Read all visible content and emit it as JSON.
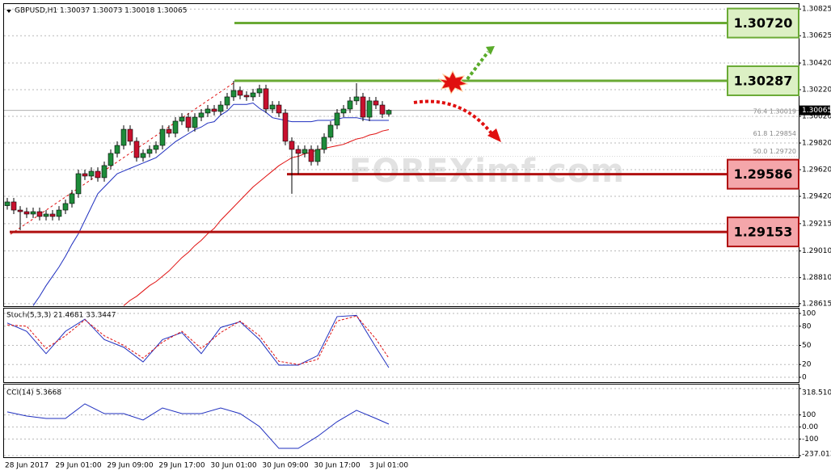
{
  "chart_data": [
    {
      "type": "candlestick",
      "title": "GBPUSD,H1 1.30037 1.30073 1.30018 1.30065",
      "categories": [
        "28 Jun 2017",
        null,
        null,
        null,
        null,
        null,
        null,
        null,
        null,
        null,
        null,
        "29 Jun 01:00",
        null,
        null,
        null,
        null,
        null,
        null,
        null,
        "29 Jun 09:00",
        null,
        null,
        null,
        null,
        null,
        null,
        null,
        "29 Jun 17:00",
        null,
        null,
        null,
        null,
        null,
        null,
        null,
        "30 Jun 01:00",
        null,
        null,
        null,
        null,
        null,
        null,
        null,
        "30 Jun 09:00",
        null,
        null,
        null,
        null,
        null,
        null,
        null,
        "30 Jun 17:00",
        null,
        null,
        null,
        null,
        null,
        null,
        null,
        "3 Jul 01:00"
      ],
      "open": [
        1.2935,
        1.29378,
        1.29317,
        1.29305,
        1.29287,
        1.29305,
        1.29269,
        1.29287,
        1.29269,
        1.29317,
        1.29366,
        1.29439,
        1.2959,
        1.29572,
        1.29608,
        1.2956,
        1.29651,
        1.29742,
        1.29802,
        1.29923,
        1.29833,
        1.29711,
        1.29742,
        1.29772,
        1.29802,
        1.29923,
        1.29893,
        1.29984,
        1.30014,
        1.29936,
        1.30014,
        1.30045,
        1.30075,
        1.30057,
        1.30105,
        1.30166,
        1.30214,
        1.30178,
        1.30166,
        1.30196,
        1.30227,
        1.30075,
        1.30105,
        1.30045,
        1.29833,
        1.29772,
        1.29742,
        1.29772,
        1.29681,
        1.29772,
        1.29863,
        1.29954,
        1.30045,
        1.30075,
        1.30136,
        1.30166,
        1.30014,
        1.30136,
        1.30105,
        1.30037
      ],
      "high": [
        1.29408,
        1.29408,
        1.29347,
        1.29335,
        1.29335,
        1.29335,
        1.29317,
        1.29317,
        1.29347,
        1.29396,
        1.29469,
        1.2962,
        1.2962,
        1.29638,
        1.29638,
        1.29681,
        1.29772,
        1.29832,
        1.29953,
        1.29953,
        1.29863,
        1.29772,
        1.29802,
        1.29832,
        1.29953,
        1.29953,
        1.30014,
        1.30044,
        1.30044,
        1.30044,
        1.30075,
        1.30105,
        1.30105,
        1.30135,
        1.30196,
        1.30287,
        1.30244,
        1.30208,
        1.30226,
        1.30257,
        1.30257,
        1.30135,
        1.30135,
        1.30075,
        1.29863,
        1.29802,
        1.29802,
        1.29802,
        1.29802,
        1.29893,
        1.29984,
        1.30075,
        1.30105,
        1.30166,
        1.30269,
        1.30196,
        1.30166,
        1.30166,
        1.30135,
        1.30073
      ],
      "low": [
        1.2932,
        1.29287,
        1.29166,
        1.29257,
        1.29257,
        1.29239,
        1.29239,
        1.29239,
        1.29239,
        1.29287,
        1.29336,
        1.29409,
        1.29542,
        1.29542,
        1.2953,
        1.2953,
        1.29621,
        1.29712,
        1.29772,
        1.29803,
        1.29681,
        1.29681,
        1.29712,
        1.29742,
        1.29772,
        1.29863,
        1.29863,
        1.29954,
        1.29906,
        1.29906,
        1.29984,
        1.30015,
        1.30027,
        1.30027,
        1.30075,
        1.30136,
        1.30148,
        1.30136,
        1.30136,
        1.30166,
        1.30045,
        1.30045,
        1.30015,
        1.29803,
        1.29439,
        1.29586,
        1.29712,
        1.29651,
        1.29651,
        1.29742,
        1.29833,
        1.29924,
        1.30015,
        1.30045,
        1.30106,
        1.29984,
        1.29984,
        1.30075,
        1.30007,
        1.30018
      ],
      "close": [
        1.29378,
        1.29317,
        1.29305,
        1.29287,
        1.29305,
        1.29269,
        1.29287,
        1.29269,
        1.29317,
        1.29366,
        1.29439,
        1.2959,
        1.29572,
        1.29608,
        1.2956,
        1.29651,
        1.29742,
        1.29802,
        1.29923,
        1.29833,
        1.29711,
        1.29742,
        1.29772,
        1.29802,
        1.29923,
        1.29893,
        1.29984,
        1.30014,
        1.29936,
        1.30014,
        1.30045,
        1.30075,
        1.30057,
        1.30105,
        1.30166,
        1.30214,
        1.30178,
        1.30166,
        1.30196,
        1.30227,
        1.30075,
        1.30105,
        1.30045,
        1.29833,
        1.29772,
        1.29742,
        1.29772,
        1.29681,
        1.29772,
        1.29863,
        1.29954,
        1.30045,
        1.30075,
        1.30136,
        1.30166,
        1.30014,
        1.30136,
        1.30105,
        1.30037,
        1.30065
      ],
      "up_color": "#1e8c3a",
      "down_color": "#c8102e",
      "lines": [
        {
          "color": "#1f2fbf",
          "values": [
            null,
            null,
            null,
            null,
            1.286,
            1.2867,
            1.2875,
            1.2882,
            1.2889,
            1.2897,
            1.2906,
            1.2914,
            1.2924,
            1.2934,
            1.2944,
            1.2949,
            1.2954,
            1.2959,
            1.2961,
            1.2963,
            1.2965,
            1.2967,
            1.2969,
            1.2971,
            1.2975,
            1.2979,
            1.2983,
            1.2986,
            1.2989,
            1.2992,
            1.2994,
            1.2997,
            1.2998,
            1.3003,
            1.3006,
            1.3011,
            1.3011,
            1.3011,
            1.3012,
            1.3008,
            1.3005,
            1.3001,
            1.3,
            1.2999,
            1.2998,
            1.2998,
            1.2998,
            1.2998,
            1.2999,
            1.2999,
            1.2999,
            1.3,
            1.3001,
            1.3001,
            1.3001,
            1.3,
            1.2999,
            1.2999,
            1.2999,
            1.2999
          ]
        },
        {
          "color": "#e01010",
          "values": [
            null,
            null,
            null,
            null,
            null,
            null,
            null,
            null,
            null,
            null,
            null,
            null,
            null,
            null,
            null,
            null,
            null,
            null,
            1.286,
            1.2864,
            1.2867,
            1.2871,
            1.2875,
            1.2878,
            1.2882,
            1.2886,
            1.2891,
            1.2896,
            1.29,
            1.2905,
            1.2909,
            1.2914,
            1.2918,
            1.2924,
            1.2929,
            1.2934,
            1.2939,
            1.2944,
            1.2949,
            1.2953,
            1.2957,
            1.2961,
            1.2965,
            1.2968,
            1.2971,
            1.2972,
            1.2974,
            1.2975,
            1.2977,
            1.2978,
            1.2979,
            1.298,
            1.2981,
            1.2983,
            1.2985,
            1.2986,
            1.2988,
            1.2989,
            1.2991,
            1.2992
          ]
        }
      ],
      "levels": [
        {
          "value": 1.3072,
          "label": "1.30720",
          "color": "#6aaa35",
          "fill": "#dcf0c4"
        },
        {
          "value": 1.30287,
          "label": "1.30287",
          "color": "#6aaa35",
          "fill": "#dcf0c4"
        },
        {
          "value": 1.29586,
          "label": "1.29586",
          "color": "#b01010",
          "fill": "#f4a6aa"
        },
        {
          "value": 1.29153,
          "label": "1.29153",
          "color": "#b01010",
          "fill": "#f4a6aa"
        }
      ],
      "fib": [
        {
          "value": 1.30019,
          "label": "76.4 1.30019"
        },
        {
          "value": 1.29854,
          "label": "61.8 1.29854"
        },
        {
          "value": 1.2972,
          "label": "50.0 1.29720"
        }
      ],
      "last_price": {
        "value": 1.30065,
        "label": "1.30065"
      },
      "watermark": "FOREXimf.com",
      "ylim": [
        1.28602,
        1.30893
      ],
      "yticks": [
        1.30825,
        1.30625,
        {
          "value": 1.3042,
          "label": "1.30420"
        },
        {
          "value": 1.3022,
          "label": "1.30220"
        },
        {
          "value": 1.3002,
          "label": "1.30020"
        },
        {
          "value": 1.2982,
          "label": "1.29820"
        },
        {
          "value": 1.2962,
          "label": "1.29620"
        },
        {
          "value": 1.2942,
          "label": "1.29420"
        },
        1.29215,
        {
          "value": 1.2901,
          "label": "1.29010"
        },
        {
          "value": 1.2881,
          "label": "1.28810"
        },
        1.28615
      ],
      "grid": true
    },
    {
      "type": "line",
      "title": "Stoch(5,3,3) 21.4681 33.3447",
      "x": [
        0,
        3,
        6,
        9,
        12,
        15,
        18,
        21,
        24,
        27,
        30,
        33,
        36,
        39,
        42,
        45,
        48,
        51,
        54,
        57,
        59
      ],
      "series": [
        {
          "color": "#1f2fbf",
          "dashed": false,
          "values": [
            85,
            72,
            37,
            72,
            91,
            59,
            47,
            24,
            59,
            70,
            37,
            78,
            87,
            59,
            19,
            19,
            34,
            95,
            97,
            47,
            15
          ]
        },
        {
          "color": "#e01010",
          "dashed": true,
          "values": [
            82,
            80,
            45,
            65,
            90,
            65,
            50,
            30,
            55,
            72,
            45,
            70,
            88,
            65,
            25,
            20,
            28,
            88,
            96,
            60,
            30
          ]
        }
      ],
      "ylim": [
        -6.3,
        106.3
      ],
      "yticks": [
        100,
        80,
        50,
        20,
        0
      ],
      "grid": true
    },
    {
      "type": "line",
      "title": "CCI(14) 5.3668",
      "x": [
        0,
        3,
        6,
        9,
        12,
        15,
        18,
        21,
        24,
        27,
        30,
        33,
        36,
        39,
        42,
        45,
        48,
        51,
        54,
        57,
        59
      ],
      "series": [
        {
          "color": "#1f2fbf",
          "dashed": false,
          "values": [
            125,
            91,
            71,
            71,
            192,
            111,
            111,
            58,
            158,
            111,
            111,
            158,
            111,
            4,
            -177,
            -177,
            -77,
            44,
            138,
            71,
            24
          ]
        }
      ],
      "ylim": [
        -237.013,
        318.5106
      ],
      "yticks": [
        318.5106,
        100,
        {
          "value": 0,
          "label": "0.00"
        },
        -100,
        -237.013
      ],
      "grid": true
    }
  ]
}
